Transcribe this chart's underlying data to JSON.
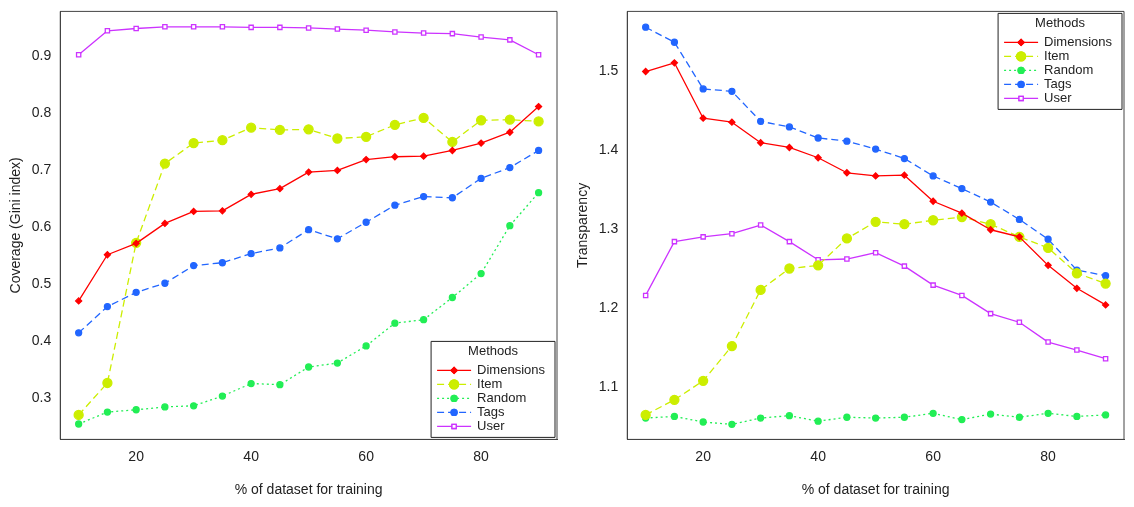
{
  "chart_data": [
    {
      "type": "line",
      "xlabel": "% of dataset for training",
      "ylabel": "Coverage (Gini index)",
      "legend_title": "Methods",
      "legend": "bottom right",
      "grid": false,
      "x": [
        10,
        15,
        20,
        25,
        30,
        35,
        40,
        45,
        50,
        55,
        60,
        65,
        70,
        75,
        80,
        85,
        90
      ],
      "xlim": [
        6.8,
        93.2
      ],
      "xticks": [
        20,
        40,
        60,
        80
      ],
      "ylim": [
        0.227,
        0.978
      ],
      "yticks": [
        0.3,
        0.4,
        0.5,
        0.6,
        0.7,
        0.8,
        0.9
      ],
      "series": [
        {
          "name": "Dimensions",
          "color": "#ff0000",
          "marker": "diamond",
          "line_style": "solid",
          "values": [
            0.47,
            0.551,
            0.571,
            0.606,
            0.627,
            0.628,
            0.657,
            0.667,
            0.696,
            0.699,
            0.718,
            0.723,
            0.724,
            0.734,
            0.747,
            0.766,
            0.811
          ]
        },
        {
          "name": "Item",
          "color": "#ccee00",
          "marker": "circle",
          "line_style": "dashed",
          "values": [
            0.27,
            0.326,
            0.572,
            0.711,
            0.747,
            0.752,
            0.774,
            0.77,
            0.771,
            0.755,
            0.758,
            0.779,
            0.791,
            0.749,
            0.787,
            0.788,
            0.785
          ]
        },
        {
          "name": "Random",
          "color": "#22ee55",
          "marker": "circle",
          "line_style": "dotted",
          "values": [
            0.254,
            0.275,
            0.279,
            0.284,
            0.286,
            0.303,
            0.325,
            0.323,
            0.354,
            0.361,
            0.391,
            0.431,
            0.437,
            0.476,
            0.518,
            0.602,
            0.66
          ]
        },
        {
          "name": "Tags",
          "color": "#2266ff",
          "marker": "circle",
          "line_style": "dashed",
          "values": [
            0.414,
            0.46,
            0.485,
            0.501,
            0.532,
            0.537,
            0.553,
            0.563,
            0.595,
            0.579,
            0.608,
            0.638,
            0.653,
            0.651,
            0.685,
            0.704,
            0.734
          ]
        },
        {
          "name": "User",
          "color": "#cc33ff",
          "marker": "square",
          "line_style": "solid",
          "values": [
            0.902,
            0.944,
            0.948,
            0.951,
            0.951,
            0.951,
            0.95,
            0.95,
            0.949,
            0.947,
            0.945,
            0.942,
            0.94,
            0.939,
            0.933,
            0.928,
            0.902
          ]
        }
      ]
    },
    {
      "type": "line",
      "xlabel": "% of dataset for training",
      "ylabel": "Transparency",
      "legend_title": "Methods",
      "legend": "top right",
      "grid": false,
      "x": [
        10,
        15,
        20,
        25,
        30,
        35,
        40,
        45,
        50,
        55,
        60,
        65,
        70,
        75,
        80,
        85,
        90
      ],
      "xlim": [
        6.8,
        93.2
      ],
      "xticks": [
        20,
        40,
        60,
        80
      ],
      "ylim": [
        1.034,
        1.575
      ],
      "yticks": [
        1.1,
        1.2,
        1.3,
        1.4,
        1.5
      ],
      "series": [
        {
          "name": "Dimensions",
          "color": "#ff0000",
          "marker": "diamond",
          "line_style": "solid",
          "values": [
            1.499,
            1.51,
            1.44,
            1.435,
            1.409,
            1.403,
            1.39,
            1.371,
            1.367,
            1.368,
            1.335,
            1.32,
            1.299,
            1.29,
            1.254,
            1.225,
            1.204
          ]
        },
        {
          "name": "Item",
          "color": "#ccee00",
          "marker": "circle",
          "line_style": "dashed",
          "values": [
            1.065,
            1.084,
            1.108,
            1.152,
            1.223,
            1.25,
            1.254,
            1.288,
            1.309,
            1.306,
            1.311,
            1.315,
            1.306,
            1.29,
            1.276,
            1.244,
            1.231
          ]
        },
        {
          "name": "Random",
          "color": "#22ee55",
          "marker": "circle",
          "line_style": "dotted",
          "values": [
            1.061,
            1.063,
            1.056,
            1.053,
            1.061,
            1.064,
            1.057,
            1.062,
            1.061,
            1.062,
            1.067,
            1.059,
            1.066,
            1.062,
            1.067,
            1.063,
            1.065
          ]
        },
        {
          "name": "Tags",
          "color": "#2266ff",
          "marker": "circle",
          "line_style": "dashed",
          "values": [
            1.555,
            1.536,
            1.477,
            1.474,
            1.436,
            1.429,
            1.415,
            1.411,
            1.401,
            1.389,
            1.367,
            1.351,
            1.334,
            1.312,
            1.287,
            1.248,
            1.241
          ]
        },
        {
          "name": "User",
          "color": "#cc33ff",
          "marker": "square",
          "line_style": "solid",
          "values": [
            1.216,
            1.284,
            1.29,
            1.294,
            1.305,
            1.284,
            1.261,
            1.262,
            1.27,
            1.253,
            1.229,
            1.216,
            1.193,
            1.182,
            1.157,
            1.147,
            1.136
          ]
        }
      ]
    }
  ]
}
